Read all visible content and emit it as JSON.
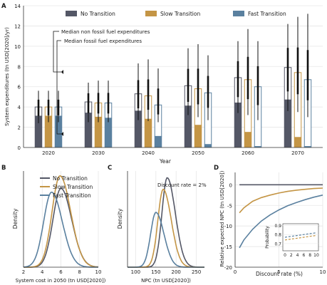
{
  "colors": {
    "no": "#545766",
    "slow": "#c49545",
    "fast": "#5a809f",
    "grid": "#e6e6e6",
    "axis": "#333333",
    "zero": "#222222"
  },
  "chart_data": [
    {
      "panel": "A",
      "type": "bar",
      "ylabel": "System expenditures (tn USD[2020]/yr)",
      "xlabel": "Year",
      "ylim": [
        0,
        14
      ],
      "yticks": [
        0,
        2,
        4,
        6,
        8,
        10,
        12,
        14
      ],
      "categories": [
        "2020",
        "2030",
        "2040",
        "2050",
        "2060",
        "2070"
      ],
      "legend": [
        "No Transition",
        "Slow Transition",
        "Fast Transition"
      ],
      "grid": true,
      "series": [
        {
          "name": "No Transition",
          "color_key": "no",
          "nonfossil": [
            3.1,
            3.4,
            3.6,
            4.1,
            4.4,
            4.7
          ],
          "total": [
            4.0,
            4.5,
            5.3,
            6.1,
            6.9,
            7.9
          ],
          "whisker_low": [
            2.4,
            2.5,
            2.7,
            3.2,
            3.4,
            3.6
          ],
          "whisker_high": [
            5.6,
            6.4,
            8.3,
            9.8,
            10.5,
            12.2
          ]
        },
        {
          "name": "Slow Transition",
          "color_key": "slow",
          "nonfossil": [
            3.1,
            3.0,
            2.8,
            2.2,
            1.5,
            1.0
          ],
          "total": [
            4.0,
            4.4,
            5.1,
            5.8,
            6.7,
            7.4
          ],
          "whisker_low": [
            2.5,
            2.5,
            2.6,
            3.0,
            3.2,
            3.5
          ],
          "whisker_high": [
            5.6,
            6.6,
            8.7,
            10.2,
            11.7,
            12.9
          ]
        },
        {
          "name": "Fast Transition",
          "color_key": "fast",
          "nonfossil": [
            3.1,
            2.9,
            1.1,
            0.3,
            0.1,
            0.1
          ],
          "total": [
            4.0,
            4.4,
            4.2,
            5.4,
            6.0,
            6.7
          ],
          "whisker_low": [
            2.5,
            2.5,
            2.5,
            2.7,
            2.7,
            3.0
          ],
          "whisker_high": [
            5.6,
            6.6,
            7.8,
            9.1,
            10.5,
            13.2
          ]
        }
      ],
      "annotations": [
        "Median non fossil fuel expenditures",
        "Median fossil fuel expenditures"
      ]
    },
    {
      "panel": "B",
      "type": "line",
      "xlabel": "System cost in 2050 (tn USD[2020])",
      "ylabel": "Density",
      "xlim": [
        2,
        10
      ],
      "xticks": [
        2,
        4,
        6,
        8,
        10
      ],
      "legend": [
        "No Transition",
        "Slow Transition",
        "Fast Transition"
      ],
      "series": [
        {
          "name": "No Transition",
          "color_key": "no",
          "mode": 6.0,
          "peak": 0.82
        },
        {
          "name": "Slow Transition",
          "color_key": "slow",
          "mode": 5.9,
          "peak": 0.95
        },
        {
          "name": "Fast Transition",
          "color_key": "fast",
          "mode": 5.0,
          "peak": 0.78
        }
      ]
    },
    {
      "panel": "C",
      "type": "line",
      "xlabel": "NPC (tn USD[2020])",
      "ylabel": "Density",
      "xlim": [
        80,
        270
      ],
      "xticks": [
        100,
        150,
        200,
        250
      ],
      "annotation": "Discount rate = 2%",
      "series": [
        {
          "name": "No Transition",
          "color_key": "no",
          "mode": 178,
          "peak": 0.93
        },
        {
          "name": "Slow Transition",
          "color_key": "slow",
          "mode": 168,
          "peak": 0.81
        },
        {
          "name": "Fast Transition",
          "color_key": "fast",
          "mode": 150,
          "peak": 0.57
        }
      ]
    },
    {
      "panel": "D",
      "type": "line",
      "xlabel": "Discount rate (%)",
      "ylabel": "Relative expected NPC (tn USD[2020])",
      "xlim": [
        0,
        10
      ],
      "xticks": [
        0,
        5,
        10
      ],
      "ylim": [
        -20,
        3
      ],
      "yticks": [
        -20,
        -15,
        -10,
        -5,
        0
      ],
      "series": [
        {
          "name": "No Transition",
          "color_key": "no",
          "x": [
            0.5,
            2,
            4,
            6,
            8,
            10
          ],
          "y": [
            0,
            0,
            0,
            0,
            0,
            0
          ]
        },
        {
          "name": "Slow Transition",
          "color_key": "slow",
          "x": [
            0.5,
            1,
            2,
            3,
            4,
            5,
            6,
            7,
            8,
            9,
            10
          ],
          "y": [
            -6.8,
            -5.6,
            -4.0,
            -3.1,
            -2.5,
            -2.0,
            -1.6,
            -1.3,
            -1.1,
            -0.9,
            -0.8
          ]
        },
        {
          "name": "Fast Transition",
          "color_key": "fast",
          "x": [
            0.5,
            1,
            2,
            3,
            4,
            5,
            6,
            7,
            8,
            9,
            10
          ],
          "y": [
            -15.3,
            -13.4,
            -10.8,
            -8.8,
            -7.3,
            -6.1,
            -5.1,
            -4.3,
            -3.6,
            -3.0,
            -2.5
          ]
        }
      ],
      "inset": {
        "xlabel": "",
        "ylabel": "Probability",
        "xticks": [
          0,
          2,
          4,
          6,
          8,
          10
        ],
        "yticks": [
          0.7,
          0.8,
          0.9
        ],
        "ylim": [
          0.62,
          0.92
        ],
        "series": [
          {
            "name": "Slow Transition",
            "color_key": "slow",
            "x": [
              0,
              2,
              4,
              6,
              8,
              10
            ],
            "y": [
              0.74,
              0.75,
              0.76,
              0.77,
              0.78,
              0.79
            ]
          },
          {
            "name": "Fast Transition",
            "color_key": "fast",
            "x": [
              0,
              2,
              4,
              6,
              8,
              10
            ],
            "y": [
              0.77,
              0.78,
              0.79,
              0.8,
              0.81,
              0.82
            ]
          }
        ]
      }
    }
  ]
}
